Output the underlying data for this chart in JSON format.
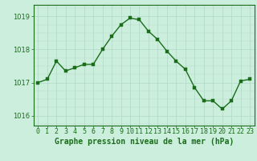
{
  "x": [
    0,
    1,
    2,
    3,
    4,
    5,
    6,
    7,
    8,
    9,
    10,
    11,
    12,
    13,
    14,
    15,
    16,
    17,
    18,
    19,
    20,
    21,
    22,
    23
  ],
  "y": [
    1017.0,
    1017.1,
    1017.65,
    1017.35,
    1017.45,
    1017.55,
    1017.55,
    1018.0,
    1018.4,
    1018.75,
    1018.95,
    1018.9,
    1018.55,
    1018.3,
    1017.95,
    1017.65,
    1017.4,
    1016.85,
    1016.45,
    1016.45,
    1016.2,
    1016.45,
    1017.05,
    1017.1
  ],
  "line_color": "#1a6e1a",
  "marker_color": "#1a6e1a",
  "bg_color": "#cceedd",
  "grid_color": "#b0d8c8",
  "axis_color": "#1a6e1a",
  "xlabel": "Graphe pression niveau de la mer (hPa)",
  "ylim": [
    1015.7,
    1019.35
  ],
  "yticks": [
    1016,
    1017,
    1018,
    1019
  ],
  "xticks": [
    0,
    1,
    2,
    3,
    4,
    5,
    6,
    7,
    8,
    9,
    10,
    11,
    12,
    13,
    14,
    15,
    16,
    17,
    18,
    19,
    20,
    21,
    22,
    23
  ],
  "xlabel_fontsize": 7.0,
  "tick_fontsize": 6.0,
  "marker_size": 2.5,
  "line_width": 1.0
}
